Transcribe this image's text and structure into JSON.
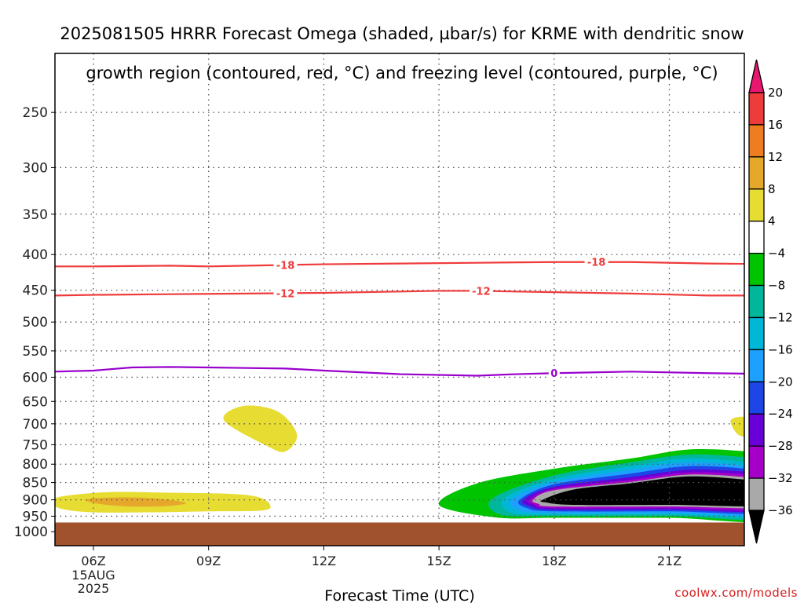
{
  "title": {
    "line1": "2025081505 HRRR Forecast Omega (shaded, µbar/s) for KRME with dendritic snow",
    "line2": "growth region (contoured, red, °C) and freezing level (contoured, purple, °C)"
  },
  "watermark": "coolwx.com/models",
  "chart_data": {
    "type": "time-height cross-section",
    "xlabel": "Forecast Time (UTC)",
    "x_ticks": [
      "06Z",
      "09Z",
      "12Z",
      "15Z",
      "18Z",
      "21Z"
    ],
    "x_tick_hours": [
      6,
      9,
      12,
      15,
      18,
      21
    ],
    "x_sublabels": [
      "15AUG",
      "2025"
    ],
    "xlim_hours": [
      5,
      23.9
    ],
    "ylabel": "",
    "y_scale": "log-pressure",
    "y_ticks": [
      250,
      300,
      350,
      400,
      450,
      500,
      550,
      600,
      650,
      700,
      750,
      800,
      850,
      900,
      950,
      1000
    ],
    "ylim_hPa": [
      200,
      1030
    ],
    "ground_level_hPa": 970,
    "grid": true,
    "colors": {
      "ground": "#a0522d",
      "dendritic_contour": "#ef3b3b",
      "freezing_contour": "#9900cc",
      "grid": "#777777"
    },
    "colorbar": {
      "labels": [
        "20",
        "16",
        "12",
        "8",
        "4",
        "−4",
        "−8",
        "−12",
        "−16",
        "−20",
        "−24",
        "−28",
        "−32",
        "−36"
      ],
      "colors": [
        "#e8176f",
        "#ee3b3b",
        "#ee7c20",
        "#e6a82a",
        "#e6dc32",
        "#ffffff",
        "#00c400",
        "#00b79c",
        "#00b7d7",
        "#1ea0ff",
        "#1e46e6",
        "#6a00d8",
        "#a600c8",
        "#a9a9a9",
        "#000000"
      ]
    },
    "contours": [
      {
        "label": "-18",
        "label_hours": [
          11,
          19.1
        ],
        "color": "#ef3b3b",
        "hours": [
          5,
          6,
          8,
          9,
          10,
          11,
          12,
          14,
          16,
          18,
          20,
          22,
          23.9
        ],
        "hPa": [
          416,
          416,
          415,
          416,
          415,
          414,
          413,
          412,
          411,
          410,
          410,
          412,
          413
        ]
      },
      {
        "label": "-12",
        "label_hours": [
          11,
          16.1
        ],
        "color": "#ef3b3b",
        "hours": [
          5,
          6,
          8,
          10,
          12,
          14,
          15,
          16,
          18,
          20,
          22,
          23.9
        ],
        "hPa": [
          458,
          457,
          456,
          455,
          454,
          452,
          451,
          451,
          453,
          455,
          458,
          458
        ]
      },
      {
        "label": "0",
        "label_hours": [
          18
        ],
        "color": "#9900cc",
        "hours": [
          5,
          6,
          7,
          8,
          9,
          10,
          11,
          12,
          14,
          16,
          17,
          18,
          20,
          22,
          23.9
        ],
        "hPa": [
          589,
          587,
          581,
          580,
          581,
          582,
          583,
          587,
          594,
          597,
          594,
          592,
          589,
          592,
          594
        ]
      }
    ],
    "omega_areas": [
      {
        "value": "4 to 8",
        "color": "#e6dc32",
        "hours": [
          5.0,
          5.5,
          6.5,
          8.0,
          9.5,
          10.3,
          10.6,
          10.4,
          9.0,
          7.5,
          6.0,
          5.2,
          4.9,
          5.0
        ],
        "hPa": [
          895,
          885,
          877,
          879,
          882,
          892,
          915,
          932,
          935,
          938,
          938,
          928,
          910,
          895
        ]
      },
      {
        "value": "8 to 12",
        "color": "#e6a82a",
        "hours": [
          5.8,
          6.5,
          7.5,
          8.4,
          8.0,
          7.0,
          6.2,
          5.8
        ],
        "hPa": [
          900,
          893,
          895,
          908,
          918,
          920,
          913,
          900
        ]
      },
      {
        "value": "4 to 8",
        "color": "#e6dc32",
        "hours": [
          9.4,
          9.9,
          10.8,
          11.3,
          11.0,
          10.5,
          9.4
        ],
        "hPa": [
          692,
          660,
          672,
          725,
          767,
          752,
          692
        ]
      },
      {
        "value": "4 to 8",
        "color": "#e6dc32",
        "hours": [
          22.6,
          23.0,
          23.4,
          23.2,
          22.8,
          22.6
        ],
        "hPa": [
          692,
          685,
          712,
          730,
          726,
          692
        ]
      },
      {
        "value": "-4 to -8",
        "color": "#00c400",
        "hours": [
          15.0,
          16.0,
          18.0,
          20.0,
          21.5,
          23.0,
          23.9,
          23.9,
          21.0,
          18.0,
          16.5,
          15.0
        ],
        "hPa": [
          915,
          852,
          812,
          785,
          762,
          767,
          782,
          955,
          955,
          955,
          954,
          915
        ]
      },
      {
        "value": "-8 to -12",
        "color": "#00b79c",
        "hours": [
          16.4,
          18.0,
          20.0,
          21.5,
          23.0,
          23.9,
          23.9,
          21.0,
          18.0,
          16.6,
          16.4
        ],
        "hPa": [
          895,
          830,
          795,
          775,
          782,
          795,
          950,
          950,
          950,
          945,
          895
        ]
      },
      {
        "value": "-12 to -16",
        "color": "#00b7d7",
        "hours": [
          16.7,
          18.0,
          20.0,
          21.5,
          23.0,
          23.9,
          23.9,
          21.0,
          18.0,
          16.9,
          16.7
        ],
        "hPa": [
          895,
          840,
          805,
          785,
          795,
          808,
          945,
          945,
          945,
          940,
          895
        ]
      },
      {
        "value": "-16 to -20",
        "color": "#1ea0ff",
        "hours": [
          16.9,
          18.0,
          20.0,
          21.5,
          23.0,
          23.9,
          23.9,
          21.0,
          18.0,
          17.1,
          16.9
        ],
        "hPa": [
          898,
          848,
          815,
          795,
          805,
          818,
          940,
          940,
          940,
          932,
          898
        ]
      },
      {
        "value": "-20 to -24",
        "color": "#1e46e6",
        "hours": [
          17.1,
          18.0,
          20.0,
          21.5,
          23.0,
          23.9,
          23.9,
          21.0,
          18.0,
          17.3,
          17.1
        ],
        "hPa": [
          900,
          855,
          825,
          805,
          812,
          828,
          935,
          935,
          935,
          925,
          900
        ]
      },
      {
        "value": "-24 to -28",
        "color": "#6a00d8",
        "hours": [
          17.2,
          18.0,
          20.0,
          21.5,
          23.0,
          23.9,
          23.9,
          21.0,
          18.0,
          17.4,
          17.2
        ],
        "hPa": [
          900,
          862,
          835,
          815,
          820,
          835,
          930,
          930,
          930,
          920,
          900
        ]
      },
      {
        "value": "-28 to -32",
        "color": "#a600c8",
        "hours": [
          17.35,
          18.0,
          20.0,
          21.5,
          23.0,
          23.9,
          23.9,
          21.0,
          18.0,
          17.5,
          17.35
        ],
        "hPa": [
          900,
          868,
          842,
          822,
          828,
          842,
          925,
          925,
          925,
          915,
          900
        ]
      },
      {
        "value": "-32 to -36",
        "color": "#a9a9a9",
        "hours": [
          17.45,
          18.0,
          20.0,
          21.5,
          23.0,
          23.9,
          23.9,
          21.0,
          18.0,
          17.6,
          17.45
        ],
        "hPa": [
          900,
          872,
          848,
          828,
          835,
          848,
          920,
          920,
          920,
          912,
          900
        ]
      },
      {
        "value": "< -36",
        "color": "#000000",
        "hours": [
          17.7,
          18.5,
          20.0,
          21.5,
          23.0,
          23.9,
          23.9,
          21.0,
          18.5,
          17.8,
          17.7
        ],
        "hPa": [
          900,
          870,
          852,
          833,
          842,
          855,
          915,
          915,
          915,
          908,
          900
        ]
      }
    ]
  }
}
